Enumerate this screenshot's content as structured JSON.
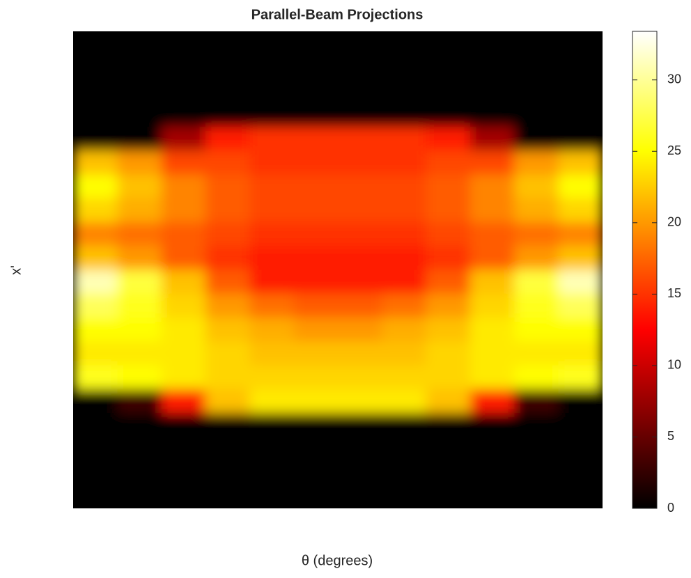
{
  "chart_data": {
    "type": "heatmap",
    "title": "Parallel-Beam Projections",
    "xlabel": "θ (degrees)",
    "ylabel": "x'",
    "colormap": "hot",
    "clim": [
      0,
      33.4
    ],
    "cticks": [
      0,
      5,
      10,
      15,
      20,
      25,
      30
    ],
    "z": [
      [
        0,
        0,
        0,
        0,
        0,
        0,
        0,
        0,
        0,
        0,
        0,
        0
      ],
      [
        0,
        0,
        0,
        0,
        0,
        0,
        0,
        0,
        0,
        0,
        0,
        0
      ],
      [
        0,
        0,
        0,
        0,
        0,
        0,
        0,
        0,
        0,
        0,
        0,
        0
      ],
      [
        0,
        0,
        0,
        0,
        0,
        0,
        0,
        0,
        0,
        0,
        0,
        0
      ],
      [
        0,
        0,
        8,
        14,
        15,
        15,
        15,
        15,
        14,
        8,
        0,
        0
      ],
      [
        22,
        20,
        16,
        16,
        15,
        15,
        15,
        15,
        16,
        16,
        20,
        22
      ],
      [
        25,
        22,
        19,
        17,
        16,
        16,
        16,
        16,
        17,
        19,
        22,
        25
      ],
      [
        23,
        21,
        19,
        17,
        16,
        16,
        16,
        16,
        17,
        19,
        21,
        23
      ],
      [
        19,
        18,
        17,
        16,
        15,
        15,
        15,
        15,
        16,
        17,
        18,
        19
      ],
      [
        22,
        20,
        17,
        15,
        14,
        14,
        14,
        14,
        15,
        17,
        20,
        22
      ],
      [
        31,
        27,
        22,
        17,
        14,
        14,
        14,
        14,
        17,
        22,
        27,
        31
      ],
      [
        28,
        26,
        23,
        20,
        18,
        17,
        17,
        18,
        20,
        23,
        26,
        28
      ],
      [
        25,
        25,
        24,
        22,
        21,
        20,
        20,
        21,
        22,
        24,
        25,
        25
      ],
      [
        24,
        24,
        24,
        23,
        22,
        22,
        22,
        22,
        23,
        24,
        24,
        24
      ],
      [
        26,
        25,
        24,
        23,
        23,
        23,
        23,
        23,
        23,
        24,
        25,
        26
      ],
      [
        0,
        3,
        14,
        22,
        24,
        24,
        24,
        24,
        22,
        14,
        3,
        0
      ],
      [
        0,
        0,
        0,
        0,
        0,
        0,
        0,
        0,
        0,
        0,
        0,
        0
      ],
      [
        0,
        0,
        0,
        0,
        0,
        0,
        0,
        0,
        0,
        0,
        0,
        0
      ],
      [
        0,
        0,
        0,
        0,
        0,
        0,
        0,
        0,
        0,
        0,
        0,
        0
      ],
      [
        0,
        0,
        0,
        0,
        0,
        0,
        0,
        0,
        0,
        0,
        0,
        0
      ]
    ]
  }
}
